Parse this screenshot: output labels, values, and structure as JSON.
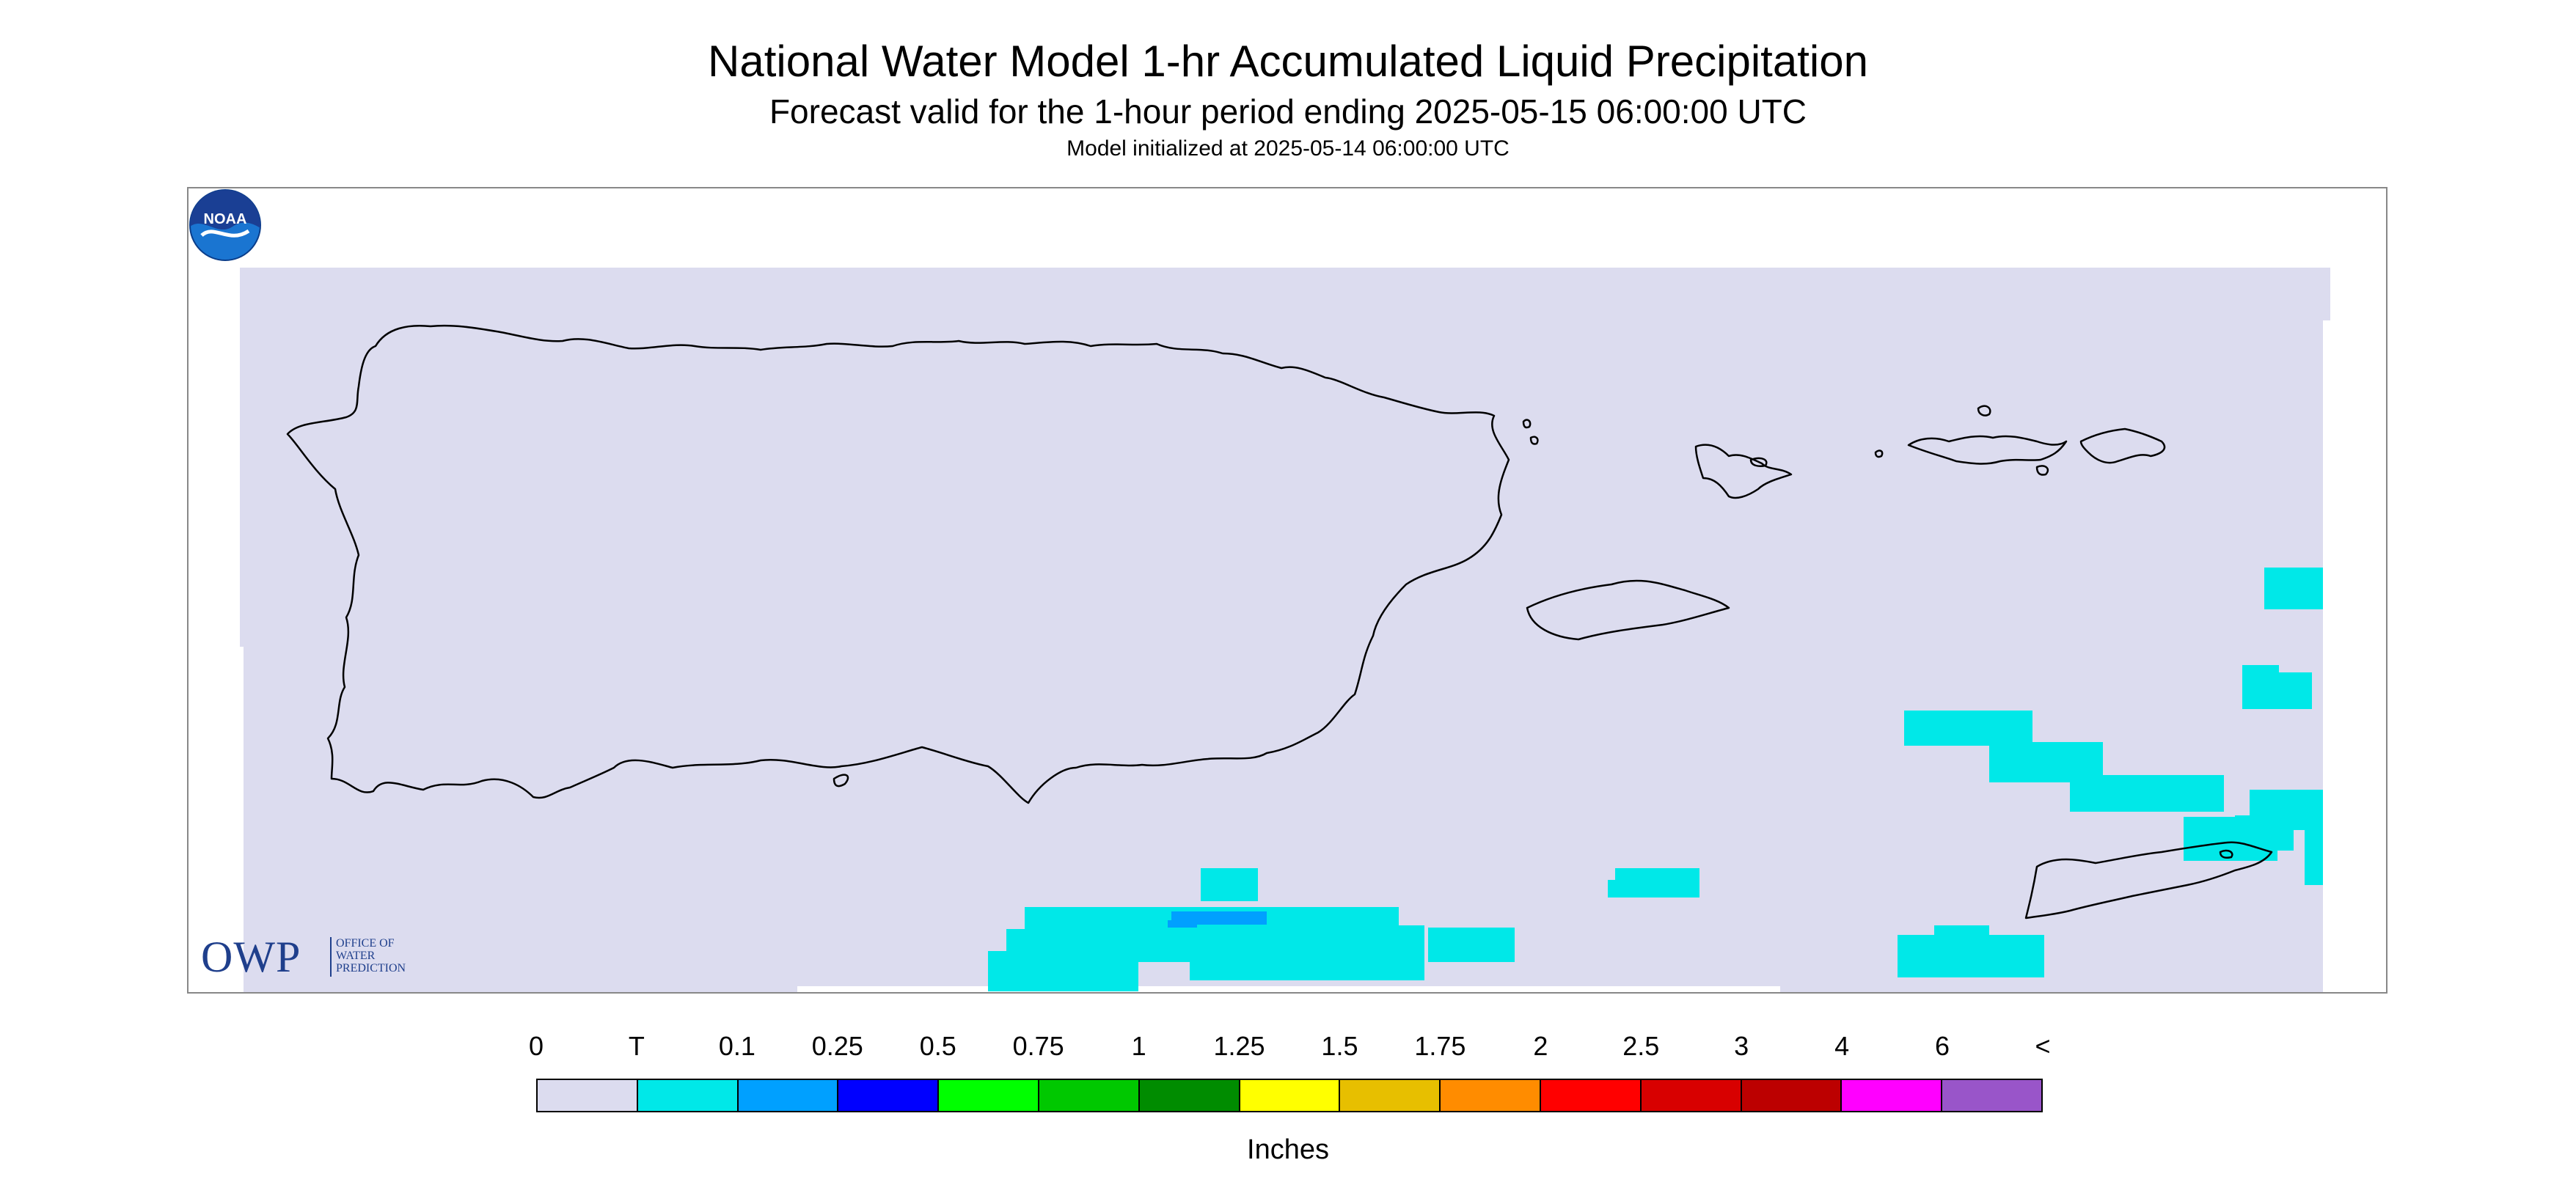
{
  "header": {
    "title": "National Water Model 1-hr Accumulated Liquid Precipitation",
    "subtitle": "Forecast valid for the 1-hour period ending 2025-05-15 06:00:00 UTC",
    "initialized": "Model initialized at 2025-05-14 06:00:00 UTC"
  },
  "map": {
    "background_color": "#dcdcef",
    "outline_color": "#000000",
    "features": [
      "Puerto Rico",
      "Vieques",
      "Culebra",
      "St. Thomas",
      "St. John",
      "St. Croix"
    ]
  },
  "logos": {
    "owp_big": "OWP",
    "owp_line1": "OFFICE OF",
    "owp_line2": "WATER",
    "owp_line3": "PREDICTION",
    "noaa": "NOAA"
  },
  "legend": {
    "labels": [
      "0",
      "T",
      "0.1",
      "0.25",
      "0.5",
      "0.75",
      "1",
      "1.25",
      "1.5",
      "1.75",
      "2",
      "2.5",
      "3",
      "4",
      "6",
      "<"
    ],
    "colors": [
      "#dcdcef",
      "#00e8e8",
      "#00a0ff",
      "#0000ff",
      "#00ff00",
      "#00c800",
      "#008c00",
      "#ffff00",
      "#e7bf00",
      "#ff8c00",
      "#ff0000",
      "#d80000",
      "#bc0000",
      "#ff00ff",
      "#9955c9"
    ],
    "unit": "Inches"
  }
}
